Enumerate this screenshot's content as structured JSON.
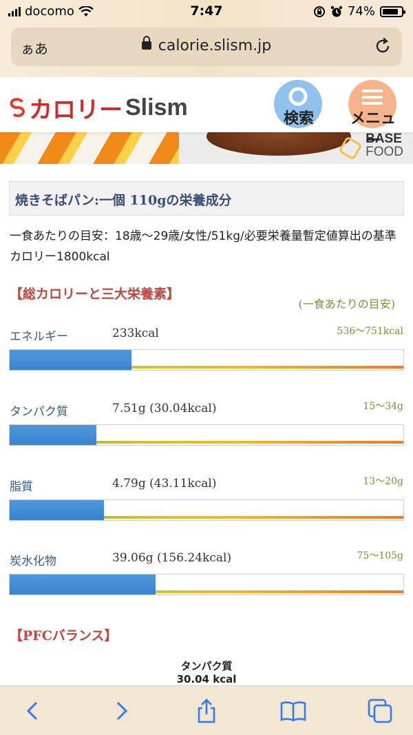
{
  "status_bar": {
    "carrier": "docomo",
    "time": "7:47",
    "battery": "74%"
  },
  "browser": {
    "aa_label": "ぁあ",
    "url": "calorie.slism.jp"
  },
  "site": {
    "logo_kana": "カロリー",
    "logo_latin": "Slism",
    "search_label": "検索",
    "menu_label": "メニュー"
  },
  "banner": {
    "brand_line1": "BASE",
    "brand_line2": "FOOD"
  },
  "page": {
    "title": "焼きそばパン:一個 110gの栄養成分",
    "description": "一食あたりの目安：18歳～29歳/女性/51kg/必要栄養量暫定値算出の基準カロリー1800kcal",
    "section_heading": "【総カロリーと三大栄養素】",
    "guide_note": "(一食あたりの目安)",
    "pfc_heading": "【PFCバランス】",
    "pfc_label_name": "タンパク質",
    "pfc_label_value": "30.04 kcal"
  },
  "nutrients": [
    {
      "name": "エネルギー",
      "value": "233kcal",
      "range": "536～751kcal",
      "fill_fraction": 0.31
    },
    {
      "name": "タンパク質",
      "value": "7.51g (30.04kcal)",
      "range": "15～34g",
      "fill_fraction": 0.22
    },
    {
      "name": "脂質",
      "value": "4.79g (43.11kcal)",
      "range": "13～20g",
      "fill_fraction": 0.24
    },
    {
      "name": "炭水化物",
      "value": "39.06g (156.24kcal)",
      "range": "75～105g",
      "fill_fraction": 0.37
    }
  ],
  "colors": {
    "accent_red": "#c0463e",
    "bar_blue": "#3b82cf",
    "range_green": "#7d8f3a"
  },
  "icons": [
    "signal-icon",
    "wifi-icon",
    "lock-icon",
    "reload-icon",
    "alarm-icon",
    "rotation-lock-icon",
    "battery-icon",
    "search-icon",
    "menu-icon",
    "back-icon",
    "forward-icon",
    "share-icon",
    "bookmarks-icon",
    "tabs-icon"
  ]
}
